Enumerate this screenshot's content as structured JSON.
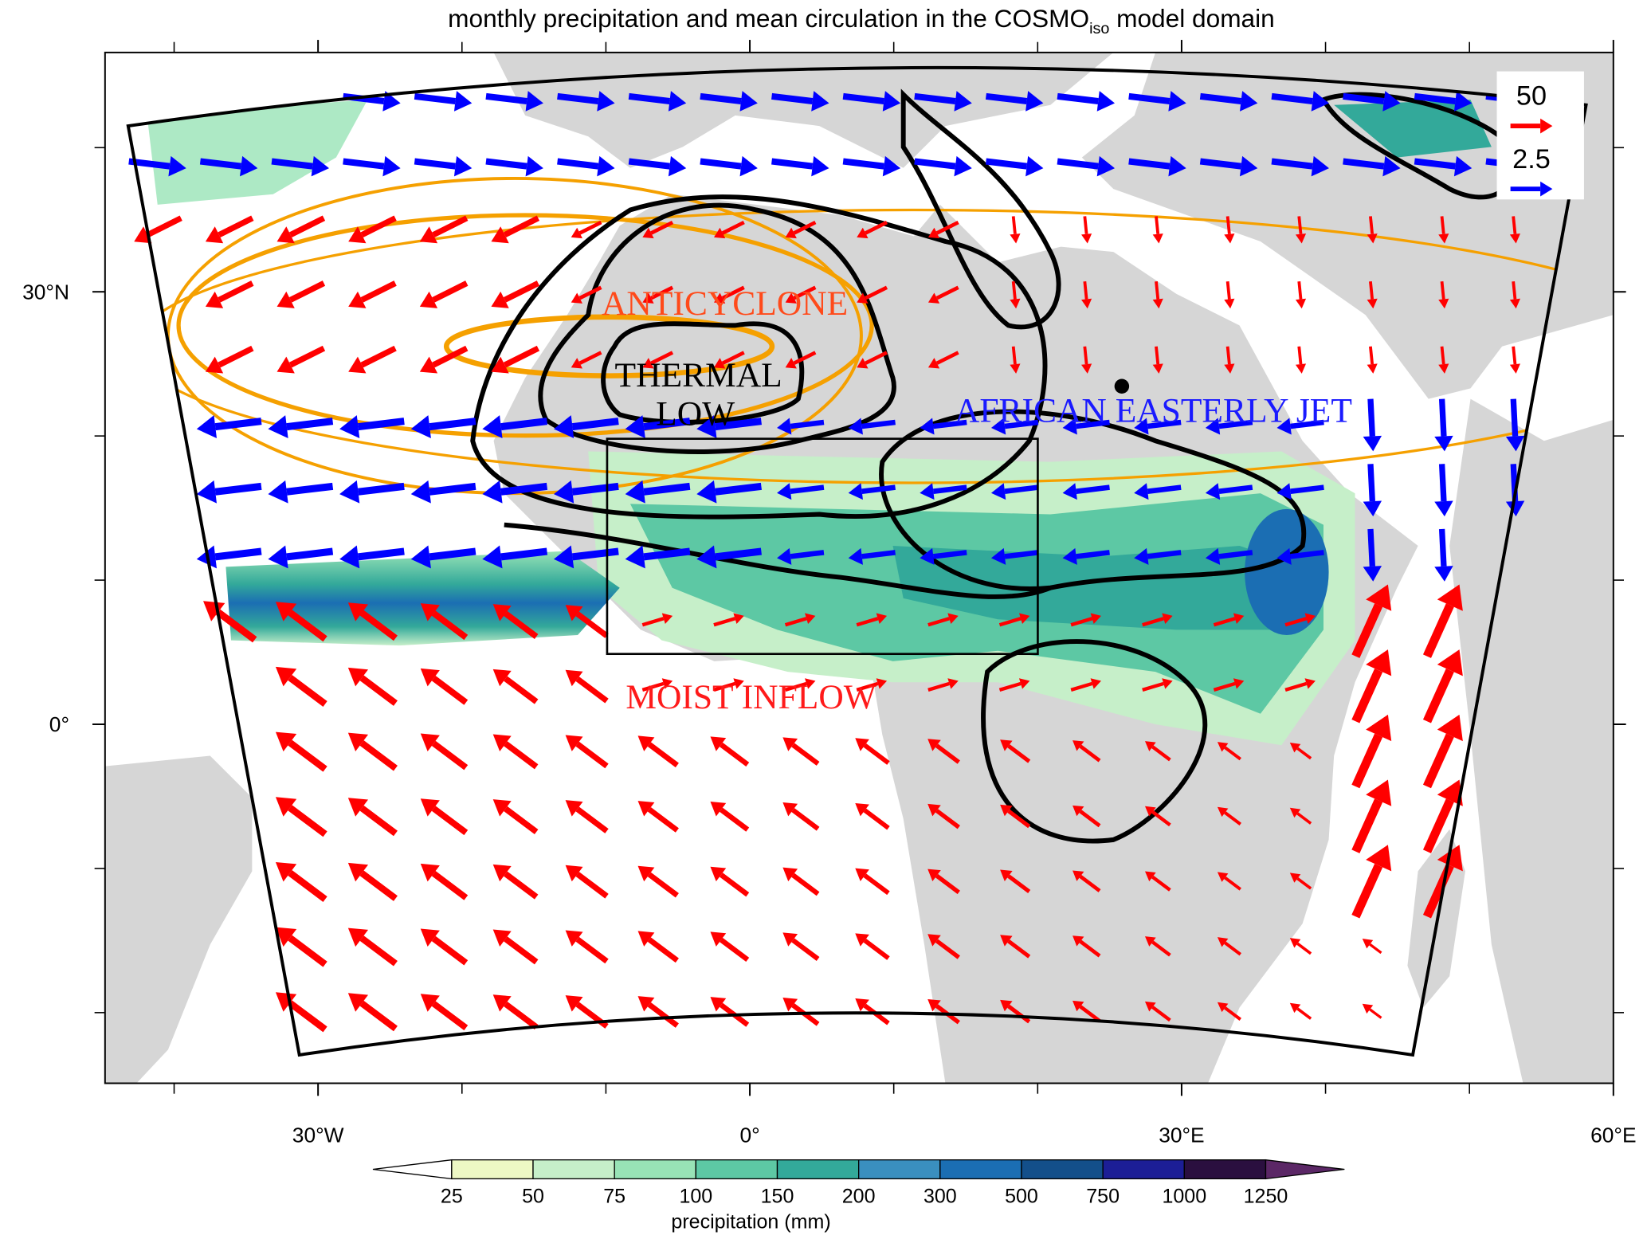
{
  "title": {
    "text": "monthly precipitation and mean circulation in the COSMO",
    "subscript": "iso",
    "suffix": " model domain"
  },
  "map": {
    "lonlim": [
      -44.8,
      60
    ],
    "latlim": [
      -24.9,
      46.6
    ],
    "lon_ticks": [
      {
        "value": -30,
        "label": "30°W"
      },
      {
        "value": 0,
        "label": "0°"
      },
      {
        "value": 30,
        "label": "30°E"
      },
      {
        "value": 60,
        "label": "60°E"
      }
    ],
    "lon_minor_ticks": [
      -40,
      -20,
      -10,
      10,
      20,
      40,
      50
    ],
    "lat_ticks": [
      {
        "value": 30,
        "label": "30°N"
      },
      {
        "value": 0,
        "label": "0°"
      }
    ],
    "lat_minor_ticks": [
      40,
      20,
      10,
      -10,
      -20
    ]
  },
  "annotations": {
    "anticyclone": "ANTICYCLONE",
    "thermal_low": [
      "THERMAL",
      "LOW"
    ],
    "jet": "AFRICAN EASTERLY JET",
    "inflow": "MOIST INFLOW"
  },
  "reference_vectors": [
    {
      "value": 50,
      "color": "#ff0000"
    },
    {
      "value": 2.5,
      "color": "#0000ff"
    }
  ],
  "colorbar": {
    "levels": [
      25,
      50,
      75,
      100,
      150,
      200,
      300,
      500,
      750,
      1000,
      1250
    ],
    "colors": [
      "#ffffff",
      "#edf8c4",
      "#c6efc9",
      "#98e3b6",
      "#5dc8a4",
      "#33a99a",
      "#3a8fbf",
      "#1b6eb3",
      "#134f8a",
      "#1c1e96",
      "#2a0f3f",
      "#5b2766"
    ],
    "label": "precipitation (mm)"
  }
}
